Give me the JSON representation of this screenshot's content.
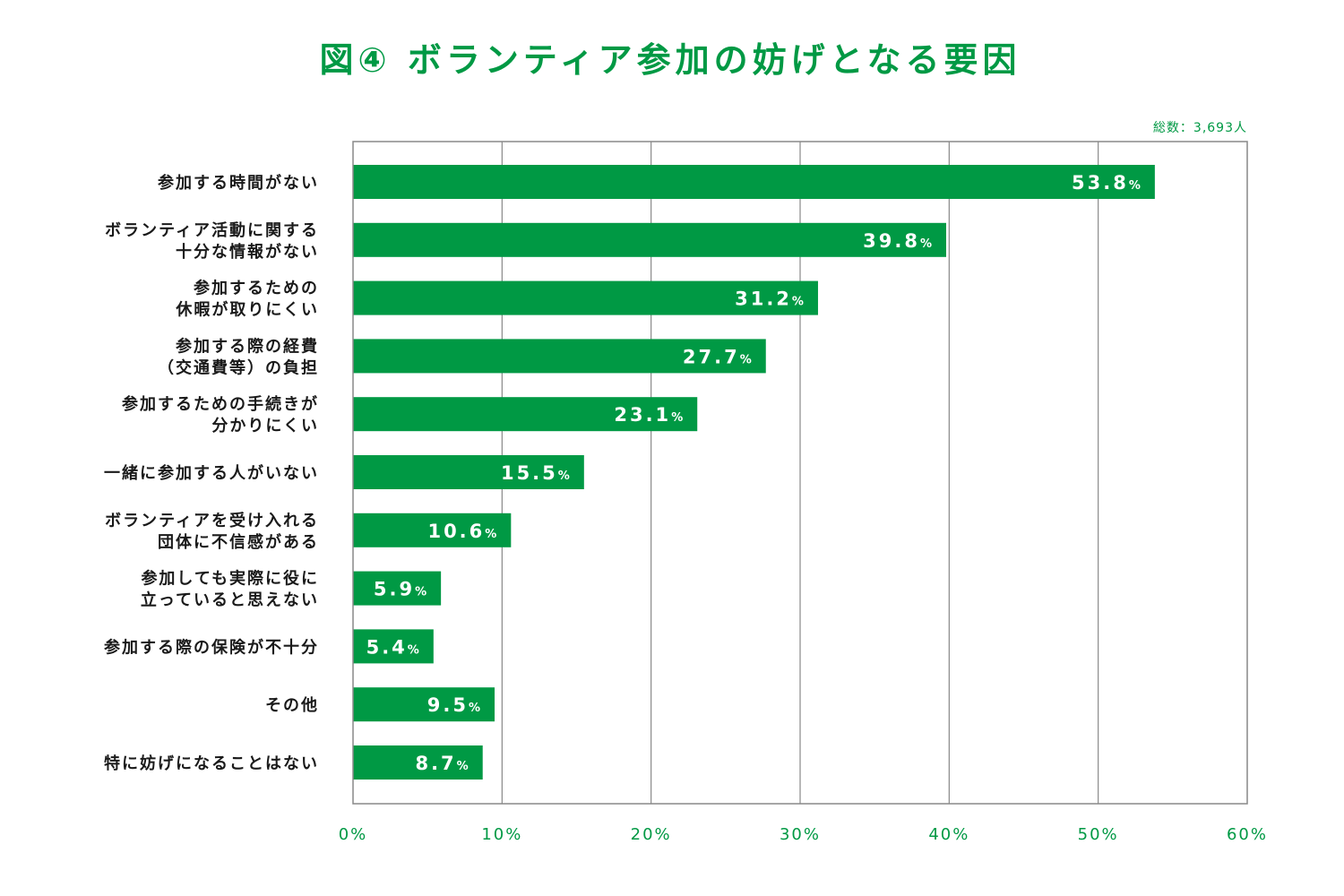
{
  "colors": {
    "accent": "#009944",
    "axis": "#888888",
    "label": "#1a1a1a"
  },
  "chart_data": {
    "type": "bar",
    "orientation": "horizontal",
    "title": "図④ ボランティア参加の妨げとなる要因",
    "total_note": "総数：3,693人",
    "value_suffix": "%",
    "categories": [
      [
        "参加する時間がない"
      ],
      [
        "ボランティア活動に関する",
        "十分な情報がない"
      ],
      [
        "参加するための",
        "休暇が取りにくい"
      ],
      [
        "参加する際の経費",
        "（交通費等）の負担"
      ],
      [
        "参加するための手続きが",
        "分かりにくい"
      ],
      [
        "一緒に参加する人がいない"
      ],
      [
        "ボランティアを受け入れる",
        "団体に不信感がある"
      ],
      [
        "参加しても実際に役に",
        "立っていると思えない"
      ],
      [
        "参加する際の保険が不十分"
      ],
      [
        "その他"
      ],
      [
        "特に妨げになることはない"
      ]
    ],
    "values": [
      53.8,
      39.8,
      31.2,
      27.7,
      23.1,
      15.5,
      10.6,
      5.9,
      5.4,
      9.5,
      8.7
    ],
    "xlim": [
      0,
      60
    ],
    "xticks": [
      0,
      10,
      20,
      30,
      40,
      50,
      60
    ],
    "tick_suffix": "%",
    "grid": true
  }
}
